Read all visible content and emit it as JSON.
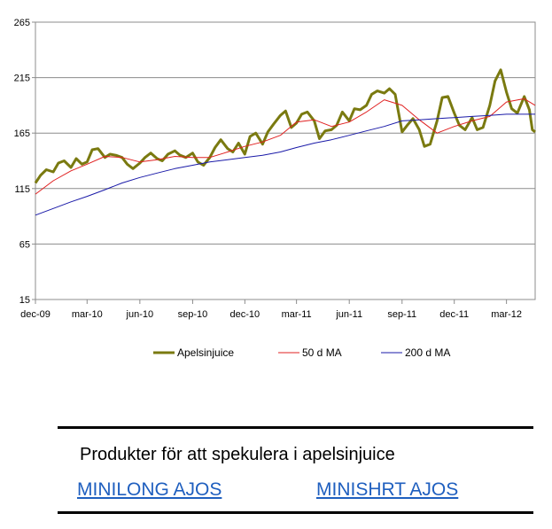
{
  "chart_data": {
    "type": "line",
    "x_ticks": [
      "dec-09",
      "mar-10",
      "jun-10",
      "sep-10",
      "dec-10",
      "mar-11",
      "jun-11",
      "sep-11",
      "dec-11",
      "mar-12"
    ],
    "y_ticks": [
      15,
      65,
      115,
      165,
      215,
      265
    ],
    "ylim": [
      15,
      265
    ],
    "xlim": [
      "2009-12-01",
      "2012-04-20"
    ],
    "grid": "horizontal",
    "legend_position": "bottom",
    "series": [
      {
        "name": "Apelsinjuice",
        "color": "#7a7a10",
        "points": [
          [
            "2009-12-01",
            120
          ],
          [
            "2009-12-10",
            127
          ],
          [
            "2009-12-20",
            132
          ],
          [
            "2010-01-01",
            130
          ],
          [
            "2010-01-10",
            138
          ],
          [
            "2010-01-20",
            140
          ],
          [
            "2010-02-01",
            134
          ],
          [
            "2010-02-10",
            142
          ],
          [
            "2010-02-20",
            137
          ],
          [
            "2010-03-01",
            139
          ],
          [
            "2010-03-10",
            150
          ],
          [
            "2010-03-20",
            151
          ],
          [
            "2010-04-01",
            143
          ],
          [
            "2010-04-10",
            146
          ],
          [
            "2010-04-20",
            145
          ],
          [
            "2010-05-01",
            143
          ],
          [
            "2010-05-10",
            137
          ],
          [
            "2010-05-20",
            133
          ],
          [
            "2010-06-01",
            138
          ],
          [
            "2010-06-10",
            143
          ],
          [
            "2010-06-20",
            147
          ],
          [
            "2010-07-01",
            142
          ],
          [
            "2010-07-10",
            140
          ],
          [
            "2010-07-20",
            146
          ],
          [
            "2010-08-01",
            149
          ],
          [
            "2010-08-10",
            145
          ],
          [
            "2010-08-20",
            143
          ],
          [
            "2010-09-01",
            147
          ],
          [
            "2010-09-10",
            139
          ],
          [
            "2010-09-20",
            136
          ],
          [
            "2010-10-01",
            143
          ],
          [
            "2010-10-10",
            152
          ],
          [
            "2010-10-20",
            159
          ],
          [
            "2010-11-01",
            151
          ],
          [
            "2010-11-10",
            148
          ],
          [
            "2010-11-20",
            156
          ],
          [
            "2010-12-01",
            146
          ],
          [
            "2010-12-10",
            162
          ],
          [
            "2010-12-20",
            165
          ],
          [
            "2011-01-01",
            155
          ],
          [
            "2011-01-10",
            166
          ],
          [
            "2011-01-20",
            173
          ],
          [
            "2011-02-01",
            181
          ],
          [
            "2011-02-10",
            185
          ],
          [
            "2011-02-20",
            170
          ],
          [
            "2011-03-01",
            174
          ],
          [
            "2011-03-10",
            182
          ],
          [
            "2011-03-20",
            184
          ],
          [
            "2011-04-01",
            176
          ],
          [
            "2011-04-10",
            160
          ],
          [
            "2011-04-20",
            167
          ],
          [
            "2011-05-01",
            168
          ],
          [
            "2011-05-10",
            172
          ],
          [
            "2011-05-20",
            184
          ],
          [
            "2011-06-01",
            176
          ],
          [
            "2011-06-10",
            187
          ],
          [
            "2011-06-20",
            186
          ],
          [
            "2011-07-01",
            190
          ],
          [
            "2011-07-10",
            200
          ],
          [
            "2011-07-20",
            203
          ],
          [
            "2011-08-01",
            201
          ],
          [
            "2011-08-10",
            205
          ],
          [
            "2011-08-20",
            200
          ],
          [
            "2011-09-01",
            166
          ],
          [
            "2011-09-10",
            172
          ],
          [
            "2011-09-20",
            178
          ],
          [
            "2011-10-01",
            168
          ],
          [
            "2011-10-10",
            153
          ],
          [
            "2011-10-20",
            155
          ],
          [
            "2011-11-01",
            176
          ],
          [
            "2011-11-10",
            197
          ],
          [
            "2011-11-20",
            198
          ],
          [
            "2011-12-01",
            183
          ],
          [
            "2011-12-10",
            172
          ],
          [
            "2011-12-20",
            168
          ],
          [
            "2012-01-01",
            179
          ],
          [
            "2012-01-10",
            168
          ],
          [
            "2012-01-20",
            170
          ],
          [
            "2012-02-01",
            190
          ],
          [
            "2012-02-10",
            212
          ],
          [
            "2012-02-20",
            222
          ],
          [
            "2012-03-01",
            202
          ],
          [
            "2012-03-10",
            187
          ],
          [
            "2012-03-20",
            183
          ],
          [
            "2012-04-01",
            198
          ],
          [
            "2012-04-10",
            186
          ],
          [
            "2012-04-15",
            168
          ],
          [
            "2012-04-20",
            166
          ]
        ]
      },
      {
        "name": "50 d MA",
        "color": "#e02020",
        "points": [
          [
            "2009-12-01",
            110
          ],
          [
            "2010-01-01",
            122
          ],
          [
            "2010-02-01",
            131
          ],
          [
            "2010-03-01",
            137
          ],
          [
            "2010-04-01",
            144
          ],
          [
            "2010-05-01",
            143
          ],
          [
            "2010-06-01",
            139
          ],
          [
            "2010-07-01",
            141
          ],
          [
            "2010-08-01",
            144
          ],
          [
            "2010-09-01",
            143
          ],
          [
            "2010-10-01",
            143
          ],
          [
            "2010-11-01",
            148
          ],
          [
            "2010-12-01",
            153
          ],
          [
            "2011-01-01",
            157
          ],
          [
            "2011-02-01",
            163
          ],
          [
            "2011-03-01",
            175
          ],
          [
            "2011-04-01",
            177
          ],
          [
            "2011-05-01",
            171
          ],
          [
            "2011-06-01",
            175
          ],
          [
            "2011-07-01",
            184
          ],
          [
            "2011-08-01",
            195
          ],
          [
            "2011-09-01",
            190
          ],
          [
            "2011-10-01",
            177
          ],
          [
            "2011-11-01",
            165
          ],
          [
            "2011-12-01",
            171
          ],
          [
            "2012-01-01",
            176
          ],
          [
            "2012-02-01",
            180
          ],
          [
            "2012-03-01",
            193
          ],
          [
            "2012-04-01",
            196
          ],
          [
            "2012-04-20",
            190
          ]
        ]
      },
      {
        "name": "200 d MA",
        "color": "#1a1aa8",
        "points": [
          [
            "2009-12-01",
            91
          ],
          [
            "2010-01-01",
            97
          ],
          [
            "2010-02-01",
            103
          ],
          [
            "2010-03-01",
            108
          ],
          [
            "2010-04-01",
            114
          ],
          [
            "2010-05-01",
            120
          ],
          [
            "2010-06-01",
            125
          ],
          [
            "2010-07-01",
            129
          ],
          [
            "2010-08-01",
            133
          ],
          [
            "2010-09-01",
            136
          ],
          [
            "2010-10-01",
            139
          ],
          [
            "2010-11-01",
            141
          ],
          [
            "2010-12-01",
            143
          ],
          [
            "2011-01-01",
            145
          ],
          [
            "2011-02-01",
            148
          ],
          [
            "2011-03-01",
            152
          ],
          [
            "2011-04-01",
            156
          ],
          [
            "2011-05-01",
            159
          ],
          [
            "2011-06-01",
            163
          ],
          [
            "2011-07-01",
            167
          ],
          [
            "2011-08-01",
            171
          ],
          [
            "2011-09-01",
            176
          ],
          [
            "2011-10-01",
            177
          ],
          [
            "2011-11-01",
            178
          ],
          [
            "2011-12-01",
            179
          ],
          [
            "2012-01-01",
            180
          ],
          [
            "2012-02-01",
            181
          ],
          [
            "2012-03-01",
            182
          ],
          [
            "2012-04-20",
            182
          ]
        ]
      }
    ]
  },
  "products": {
    "title": "Produkter för att spekulera i apelsinjuice",
    "links": [
      "MINILONG AJOS",
      "MINISHRT AJOS"
    ]
  }
}
